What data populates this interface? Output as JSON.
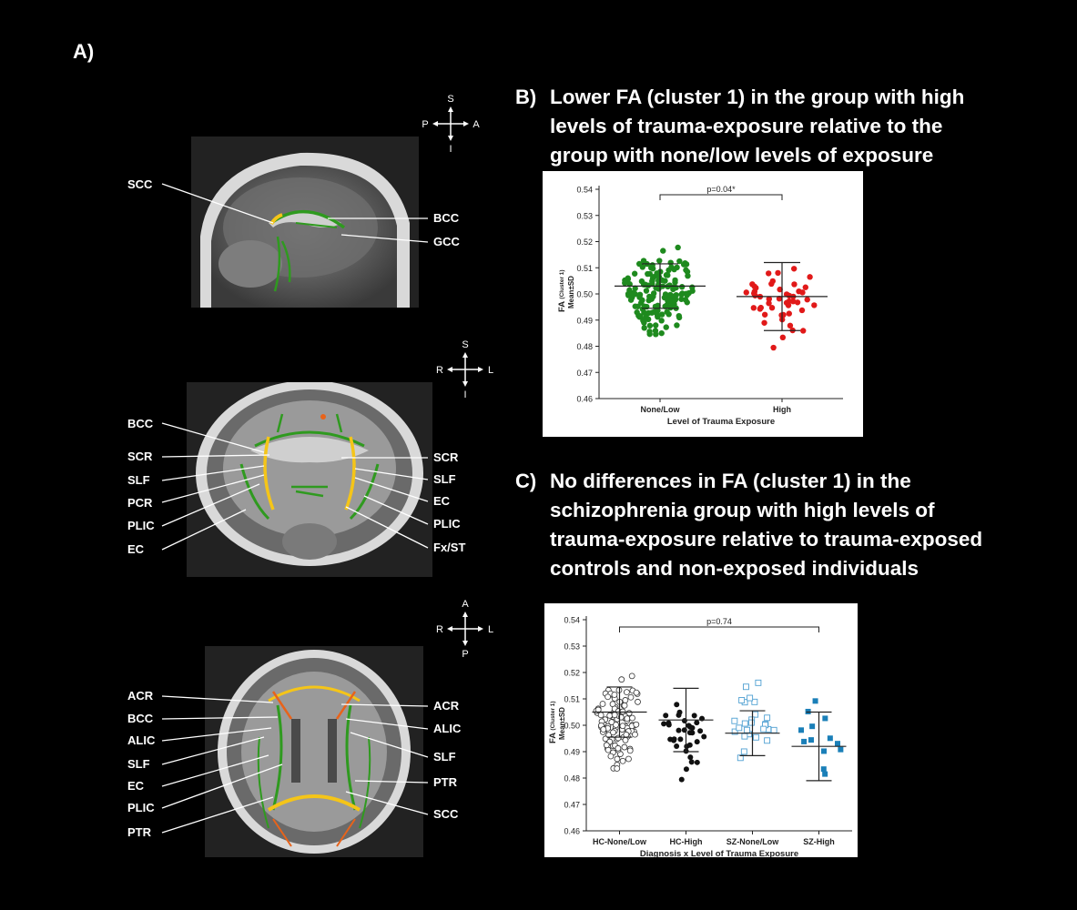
{
  "panels": {
    "a": {
      "letter": "A)"
    },
    "b": {
      "letter": "B)",
      "heading_lines": [
        "Lower FA (cluster 1) in the group with high",
        "levels of trauma-exposure relative to the",
        "group with none/low levels of exposure"
      ]
    },
    "c": {
      "letter": "C)",
      "heading_lines": [
        "No differences in FA (cluster 1) in the",
        "schizophrenia group with high levels of",
        "trauma-exposure relative to trauma-exposed",
        "controls and non-exposed individuals"
      ]
    }
  },
  "compasses": [
    {
      "top": "S",
      "bottom": "I",
      "left": "P",
      "right": "A"
    },
    {
      "top": "S",
      "bottom": "I",
      "left": "R",
      "right": "L"
    },
    {
      "top": "A",
      "bottom": "P",
      "left": "R",
      "right": "L"
    }
  ],
  "sagittal_labels": {
    "left": [
      "SCC"
    ],
    "right": [
      "BCC",
      "GCC"
    ]
  },
  "coronal_labels": {
    "left": [
      "BCC",
      "SCR",
      "SLF",
      "PCR",
      "PLIC",
      "EC"
    ],
    "right": [
      "SCR",
      "SLF",
      "EC",
      "PLIC",
      "Fx/ST"
    ]
  },
  "axial_labels": {
    "left": [
      "ACR",
      "BCC",
      "ALIC",
      "SLF",
      "EC",
      "PLIC",
      "PTR"
    ],
    "right": [
      "ACR",
      "ALIC",
      "SLF",
      "PTR",
      "SCC"
    ]
  },
  "colors": {
    "group_green": "#1e8a1e",
    "group_red": "#e11919",
    "sz_blue": "#1a7fb8",
    "tract_green": "#2f9a1f",
    "tract_yellow": "#f5c518",
    "tract_orange": "#e8631a"
  },
  "chart_data": [
    {
      "type": "scatter",
      "xlabel": "Level of Trauma Exposure",
      "ylabel_main": "FA",
      "ylabel_sub": "(Cluster 1)",
      "ylabel_line2": "Mean±SD",
      "ylim": [
        0.46,
        0.54
      ],
      "yticks": [
        "0.46",
        "0.47",
        "0.48",
        "0.49",
        "0.50",
        "0.51",
        "0.52",
        "0.53",
        "0.54"
      ],
      "annotation": "p=0.04*",
      "categories": [
        "None/Low",
        "High"
      ],
      "series": [
        {
          "category": "None/Low",
          "marker": "filled-circle",
          "color": "#1e8a1e",
          "mean": 0.503,
          "sd": 0.0085,
          "count": 150,
          "min": 0.484,
          "max": 0.519
        },
        {
          "category": "High",
          "marker": "filled-circle",
          "color": "#e11919",
          "mean": 0.499,
          "sd": 0.013,
          "count": 48,
          "min": 0.477,
          "max": 0.518
        }
      ]
    },
    {
      "type": "scatter",
      "xlabel": "Diagnosis x Level of Trauma Exposure",
      "ylabel_main": "FA",
      "ylabel_sub": "(Cluster 1)",
      "ylabel_line2": "Mean±SD",
      "ylim": [
        0.46,
        0.54
      ],
      "yticks": [
        "0.46",
        "0.47",
        "0.48",
        "0.49",
        "0.50",
        "0.51",
        "0.52",
        "0.53",
        "0.54"
      ],
      "annotation": "p=0.74",
      "categories": [
        "HC-None/Low",
        "HC-High",
        "SZ-None/Low",
        "SZ-High"
      ],
      "series": [
        {
          "category": "HC-None/Low",
          "marker": "open-circle",
          "color": "#333333",
          "mean": 0.505,
          "sd": 0.0095,
          "count": 110,
          "min": 0.483,
          "max": 0.52
        },
        {
          "category": "HC-High",
          "marker": "filled-circle",
          "color": "#111111",
          "mean": 0.502,
          "sd": 0.012,
          "count": 34,
          "min": 0.477,
          "max": 0.518
        },
        {
          "category": "SZ-None/Low",
          "marker": "open-square",
          "color": "#4fa0d2",
          "mean": 0.497,
          "sd": 0.0085,
          "count": 26,
          "min": 0.482,
          "max": 0.519
        },
        {
          "category": "SZ-High",
          "marker": "filled-square",
          "color": "#1a7fb8",
          "mean": 0.492,
          "sd": 0.013,
          "count": 13,
          "min": 0.477,
          "max": 0.518
        }
      ]
    }
  ]
}
